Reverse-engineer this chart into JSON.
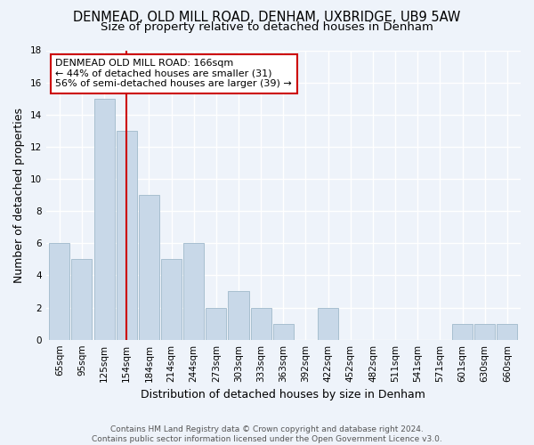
{
  "title": "DENMEAD, OLD MILL ROAD, DENHAM, UXBRIDGE, UB9 5AW",
  "subtitle": "Size of property relative to detached houses in Denham",
  "xlabel": "Distribution of detached houses by size in Denham",
  "ylabel": "Number of detached properties",
  "categories": [
    "65sqm",
    "95sqm",
    "125sqm",
    "154sqm",
    "184sqm",
    "214sqm",
    "244sqm",
    "273sqm",
    "303sqm",
    "333sqm",
    "363sqm",
    "392sqm",
    "422sqm",
    "452sqm",
    "482sqm",
    "511sqm",
    "541sqm",
    "571sqm",
    "601sqm",
    "630sqm",
    "660sqm"
  ],
  "values": [
    6,
    5,
    15,
    13,
    9,
    5,
    6,
    2,
    3,
    2,
    1,
    0,
    2,
    0,
    0,
    0,
    0,
    0,
    1,
    1,
    1
  ],
  "bar_color": "#c8d8e8",
  "bar_edge_color": "#a8bfd0",
  "vline_x_index": 3,
  "vline_color": "#cc0000",
  "annotation_text": "DENMEAD OLD MILL ROAD: 166sqm\n← 44% of detached houses are smaller (31)\n56% of semi-detached houses are larger (39) →",
  "annotation_box_color": "white",
  "annotation_box_edge": "#cc0000",
  "ylim": [
    0,
    18
  ],
  "yticks": [
    0,
    2,
    4,
    6,
    8,
    10,
    12,
    14,
    16,
    18
  ],
  "footer": "Contains HM Land Registry data © Crown copyright and database right 2024.\nContains public sector information licensed under the Open Government Licence v3.0.",
  "bg_color": "#eef3fa",
  "grid_color": "white",
  "title_fontsize": 10.5,
  "subtitle_fontsize": 9.5,
  "label_fontsize": 9,
  "tick_fontsize": 7.5,
  "footer_fontsize": 6.5,
  "annotation_fontsize": 8
}
